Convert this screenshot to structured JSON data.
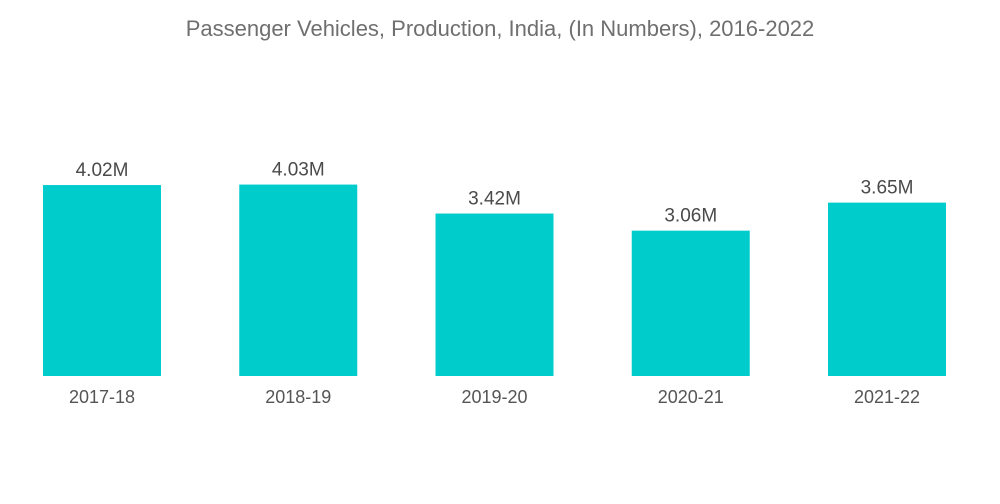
{
  "chart_data": {
    "type": "bar",
    "title": "Passenger Vehicles, Production, India, (In Numbers), 2016-2022",
    "xlabel": "",
    "ylabel": "",
    "categories": [
      "2017-18",
      "2018-19",
      "2019-20",
      "2020-21",
      "2021-22"
    ],
    "values": [
      4.02,
      4.03,
      3.42,
      3.06,
      3.65
    ],
    "value_labels": [
      "4.02M",
      "4.03M",
      "3.42M",
      "3.06M",
      "3.65M"
    ],
    "unit": "M",
    "ylim": [
      0,
      4.03
    ],
    "grid": false,
    "legend": "none",
    "colors": {
      "bar": "#00CCCC"
    }
  }
}
